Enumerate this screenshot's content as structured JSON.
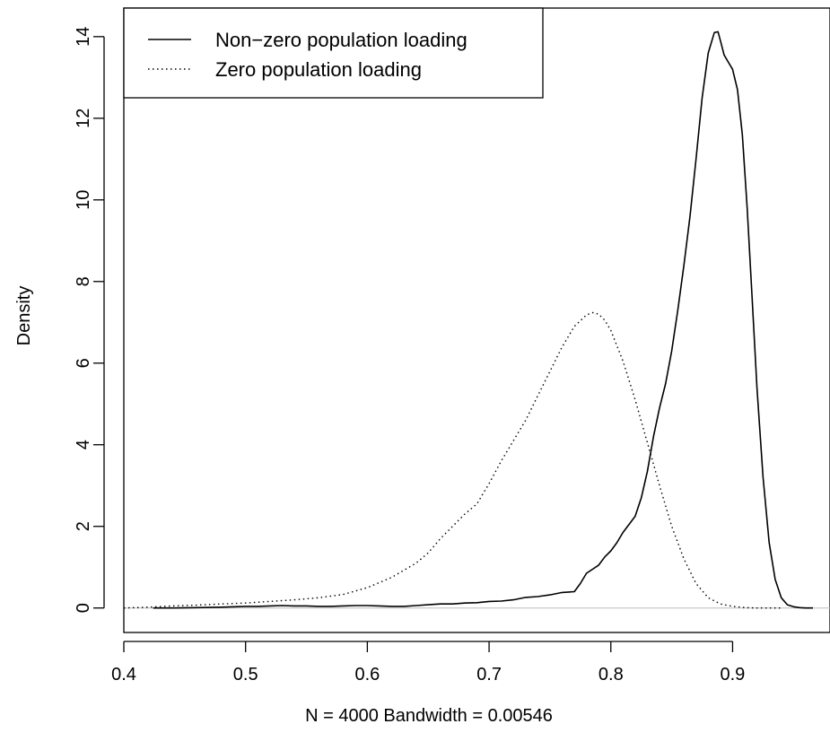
{
  "chart_data": {
    "type": "line",
    "title": "",
    "xlabel": "N = 4000   Bandwidth = 0.00546",
    "ylabel": "Density",
    "xlim": [
      0.4,
      0.98
    ],
    "ylim": [
      -0.6,
      14.7
    ],
    "xticks": [
      0.4,
      0.5,
      0.6,
      0.7,
      0.8,
      0.9
    ],
    "xtick_labels": [
      "0.4",
      "0.5",
      "0.6",
      "0.7",
      "0.8",
      "0.9"
    ],
    "yticks": [
      0,
      2,
      4,
      6,
      8,
      10,
      12,
      14
    ],
    "ytick_labels": [
      "0",
      "2",
      "4",
      "6",
      "8",
      "10",
      "12",
      "14"
    ],
    "grid": false,
    "zero_baseline": true,
    "legend_position": "top-left",
    "series": [
      {
        "name": "Non−zero population loading",
        "line_style": "solid",
        "color": "#000000",
        "x": [
          0.424,
          0.44,
          0.46,
          0.48,
          0.5,
          0.51,
          0.52,
          0.53,
          0.54,
          0.55,
          0.56,
          0.57,
          0.58,
          0.59,
          0.6,
          0.61,
          0.62,
          0.63,
          0.64,
          0.65,
          0.66,
          0.67,
          0.68,
          0.69,
          0.7,
          0.71,
          0.72,
          0.73,
          0.74,
          0.75,
          0.76,
          0.77,
          0.775,
          0.78,
          0.785,
          0.79,
          0.795,
          0.8,
          0.805,
          0.81,
          0.815,
          0.82,
          0.825,
          0.83,
          0.835,
          0.84,
          0.845,
          0.85,
          0.855,
          0.86,
          0.865,
          0.87,
          0.875,
          0.88,
          0.885,
          0.888,
          0.89,
          0.893,
          0.896,
          0.9,
          0.904,
          0.908,
          0.912,
          0.916,
          0.92,
          0.925,
          0.93,
          0.935,
          0.94,
          0.945,
          0.95,
          0.955,
          0.96,
          0.966
        ],
        "y": [
          0.0,
          0.0,
          0.01,
          0.02,
          0.04,
          0.04,
          0.05,
          0.06,
          0.05,
          0.05,
          0.04,
          0.04,
          0.05,
          0.06,
          0.06,
          0.05,
          0.04,
          0.04,
          0.06,
          0.08,
          0.1,
          0.1,
          0.12,
          0.13,
          0.16,
          0.17,
          0.2,
          0.26,
          0.28,
          0.32,
          0.38,
          0.4,
          0.6,
          0.85,
          0.95,
          1.05,
          1.25,
          1.4,
          1.6,
          1.85,
          2.05,
          2.25,
          2.7,
          3.35,
          4.2,
          4.9,
          5.5,
          6.3,
          7.3,
          8.4,
          9.6,
          11.0,
          12.5,
          13.6,
          14.1,
          14.12,
          13.9,
          13.55,
          13.4,
          13.2,
          12.7,
          11.6,
          9.8,
          7.6,
          5.4,
          3.2,
          1.6,
          0.7,
          0.25,
          0.08,
          0.03,
          0.01,
          0.0,
          0.0
        ]
      },
      {
        "name": "Zero population loading",
        "line_style": "dotted",
        "color": "#000000",
        "x": [
          0.4,
          0.42,
          0.44,
          0.46,
          0.48,
          0.5,
          0.52,
          0.54,
          0.56,
          0.58,
          0.6,
          0.62,
          0.64,
          0.65,
          0.66,
          0.67,
          0.68,
          0.69,
          0.7,
          0.71,
          0.72,
          0.73,
          0.74,
          0.75,
          0.76,
          0.77,
          0.78,
          0.785,
          0.79,
          0.795,
          0.8,
          0.81,
          0.82,
          0.83,
          0.84,
          0.85,
          0.86,
          0.87,
          0.88,
          0.89,
          0.9,
          0.91,
          0.92,
          0.93,
          0.94
        ],
        "y": [
          0.0,
          0.02,
          0.05,
          0.07,
          0.1,
          0.12,
          0.16,
          0.2,
          0.25,
          0.33,
          0.5,
          0.75,
          1.1,
          1.35,
          1.7,
          2.0,
          2.3,
          2.55,
          3.05,
          3.6,
          4.1,
          4.6,
          5.2,
          5.8,
          6.4,
          6.9,
          7.18,
          7.24,
          7.2,
          7.05,
          6.8,
          6.05,
          5.1,
          4.05,
          3.0,
          2.0,
          1.2,
          0.6,
          0.25,
          0.1,
          0.04,
          0.01,
          0.0,
          0.0,
          0.0
        ]
      }
    ]
  }
}
